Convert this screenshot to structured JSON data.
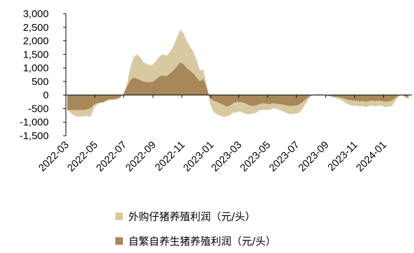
{
  "chart_data": {
    "type": "area",
    "title": "",
    "xlabel": "",
    "ylabel": "",
    "ylim": [
      -1500,
      3000
    ],
    "yticks": [
      3000,
      2500,
      2000,
      1500,
      1000,
      500,
      0,
      -500,
      -1000,
      -1500
    ],
    "ytick_labels": [
      "3,000",
      "2,500",
      "2,000",
      "1,500",
      "1,000",
      "500",
      "0",
      "-500",
      "-1,000",
      "-1,500"
    ],
    "xlim": [
      "2022-03",
      "2024-03"
    ],
    "xtick_labels": [
      "2022-03",
      "2022-05",
      "2022-07",
      "2022-09",
      "2022-11",
      "2023-01",
      "2023-03",
      "2023-05",
      "2023-07",
      "2023-09",
      "2023-11",
      "2024-01"
    ],
    "grid": false,
    "legend_position": "bottom",
    "series": [
      {
        "name": "外购仔猪养殖利润（元/头）",
        "color": "#d9c9a3",
        "points": [
          [
            "2022-03-04",
            -550
          ],
          [
            "2022-03-11",
            -650
          ],
          [
            "2022-03-18",
            -750
          ],
          [
            "2022-03-25",
            -800
          ],
          [
            "2022-04-01",
            -800
          ],
          [
            "2022-04-08",
            -780
          ],
          [
            "2022-04-15",
            -780
          ],
          [
            "2022-04-22",
            -800
          ],
          [
            "2022-04-29",
            -500
          ],
          [
            "2022-05-06",
            -350
          ],
          [
            "2022-05-13",
            -280
          ],
          [
            "2022-05-20",
            -280
          ],
          [
            "2022-05-27",
            -200
          ],
          [
            "2022-06-03",
            -180
          ],
          [
            "2022-06-10",
            -180
          ],
          [
            "2022-06-17",
            -150
          ],
          [
            "2022-06-24",
            -100
          ],
          [
            "2022-07-01",
            50
          ],
          [
            "2022-07-08",
            400
          ],
          [
            "2022-07-15",
            1000
          ],
          [
            "2022-07-22",
            1400
          ],
          [
            "2022-07-29",
            1500
          ],
          [
            "2022-08-05",
            1400
          ],
          [
            "2022-08-12",
            1200
          ],
          [
            "2022-08-19",
            1150
          ],
          [
            "2022-08-26",
            1100
          ],
          [
            "2022-09-02",
            1150
          ],
          [
            "2022-09-09",
            1300
          ],
          [
            "2022-09-16",
            1450
          ],
          [
            "2022-09-23",
            1500
          ],
          [
            "2022-09-30",
            1450
          ],
          [
            "2022-10-07",
            1600
          ],
          [
            "2022-10-14",
            1800
          ],
          [
            "2022-10-21",
            2100
          ],
          [
            "2022-10-28",
            2400
          ],
          [
            "2022-11-04",
            2300
          ],
          [
            "2022-11-11",
            2000
          ],
          [
            "2022-11-18",
            1800
          ],
          [
            "2022-11-25",
            1600
          ],
          [
            "2022-12-02",
            1300
          ],
          [
            "2022-12-09",
            900
          ],
          [
            "2022-12-16",
            950
          ],
          [
            "2022-12-23",
            400
          ],
          [
            "2022-12-30",
            -300
          ],
          [
            "2023-01-06",
            -600
          ],
          [
            "2023-01-13",
            -700
          ],
          [
            "2023-01-20",
            -750
          ],
          [
            "2023-01-27",
            -800
          ],
          [
            "2023-02-03",
            -800
          ],
          [
            "2023-02-10",
            -750
          ],
          [
            "2023-02-17",
            -650
          ],
          [
            "2023-02-24",
            -650
          ],
          [
            "2023-03-03",
            -600
          ],
          [
            "2023-03-10",
            -650
          ],
          [
            "2023-03-17",
            -700
          ],
          [
            "2023-03-24",
            -700
          ],
          [
            "2023-03-31",
            -680
          ],
          [
            "2023-04-07",
            -650
          ],
          [
            "2023-04-14",
            -550
          ],
          [
            "2023-04-21",
            -550
          ],
          [
            "2023-04-28",
            -550
          ],
          [
            "2023-05-05",
            -550
          ],
          [
            "2023-05-12",
            -500
          ],
          [
            "2023-05-19",
            -500
          ],
          [
            "2023-05-26",
            -550
          ],
          [
            "2023-06-02",
            -600
          ],
          [
            "2023-06-09",
            -650
          ],
          [
            "2023-06-16",
            -700
          ],
          [
            "2023-06-23",
            -700
          ],
          [
            "2023-06-30",
            -680
          ],
          [
            "2023-07-07",
            -650
          ],
          [
            "2023-07-14",
            -500
          ],
          [
            "2023-07-21",
            -300
          ],
          [
            "2023-07-28",
            -100
          ],
          [
            "2023-08-04",
            0
          ],
          [
            "2023-08-11",
            20
          ],
          [
            "2023-08-18",
            30
          ],
          [
            "2023-08-25",
            30
          ],
          [
            "2023-09-01",
            -10
          ],
          [
            "2023-09-08",
            -40
          ],
          [
            "2023-09-15",
            -80
          ],
          [
            "2023-09-22",
            -120
          ],
          [
            "2023-09-29",
            -150
          ],
          [
            "2023-10-06",
            -200
          ],
          [
            "2023-10-13",
            -300
          ],
          [
            "2023-10-20",
            -350
          ],
          [
            "2023-10-27",
            -400
          ],
          [
            "2023-11-03",
            -380
          ],
          [
            "2023-11-10",
            -420
          ],
          [
            "2023-11-17",
            -400
          ],
          [
            "2023-11-24",
            -440
          ],
          [
            "2023-12-01",
            -400
          ],
          [
            "2023-12-08",
            -380
          ],
          [
            "2023-12-15",
            -420
          ],
          [
            "2023-12-22",
            -380
          ],
          [
            "2023-12-29",
            -400
          ],
          [
            "2024-01-05",
            -450
          ],
          [
            "2024-01-12",
            -420
          ],
          [
            "2024-01-19",
            -400
          ],
          [
            "2024-01-26",
            -200
          ],
          [
            "2024-02-02",
            -50
          ],
          [
            "2024-02-09",
            20
          ],
          [
            "2024-02-16",
            -100
          ],
          [
            "2024-02-23",
            -150
          ]
        ]
      },
      {
        "name": "自繁自养生猪养殖利润（元/头）",
        "color": "#a8875b",
        "points": [
          [
            "2022-03-04",
            -550
          ],
          [
            "2022-03-11",
            -550
          ],
          [
            "2022-03-18",
            -550
          ],
          [
            "2022-03-25",
            -550
          ],
          [
            "2022-04-01",
            -550
          ],
          [
            "2022-04-08",
            -550
          ],
          [
            "2022-04-15",
            -520
          ],
          [
            "2022-04-22",
            -480
          ],
          [
            "2022-04-29",
            -350
          ],
          [
            "2022-05-06",
            -300
          ],
          [
            "2022-05-13",
            -280
          ],
          [
            "2022-05-20",
            -250
          ],
          [
            "2022-05-27",
            -180
          ],
          [
            "2022-06-03",
            -150
          ],
          [
            "2022-06-10",
            -150
          ],
          [
            "2022-06-17",
            -130
          ],
          [
            "2022-06-24",
            -80
          ],
          [
            "2022-07-01",
            50
          ],
          [
            "2022-07-08",
            300
          ],
          [
            "2022-07-15",
            550
          ],
          [
            "2022-07-22",
            650
          ],
          [
            "2022-07-29",
            600
          ],
          [
            "2022-08-05",
            550
          ],
          [
            "2022-08-12",
            500
          ],
          [
            "2022-08-19",
            480
          ],
          [
            "2022-08-26",
            480
          ],
          [
            "2022-09-02",
            500
          ],
          [
            "2022-09-09",
            600
          ],
          [
            "2022-09-16",
            700
          ],
          [
            "2022-09-23",
            720
          ],
          [
            "2022-09-30",
            700
          ],
          [
            "2022-10-07",
            800
          ],
          [
            "2022-10-14",
            900
          ],
          [
            "2022-10-21",
            1050
          ],
          [
            "2022-10-28",
            1200
          ],
          [
            "2022-11-04",
            1150
          ],
          [
            "2022-11-11",
            1000
          ],
          [
            "2022-11-18",
            900
          ],
          [
            "2022-11-25",
            800
          ],
          [
            "2022-12-02",
            650
          ],
          [
            "2022-12-09",
            500
          ],
          [
            "2022-12-16",
            600
          ],
          [
            "2022-12-23",
            300
          ],
          [
            "2022-12-30",
            -100
          ],
          [
            "2023-01-06",
            -200
          ],
          [
            "2023-01-13",
            -250
          ],
          [
            "2023-01-20",
            -300
          ],
          [
            "2023-01-27",
            -350
          ],
          [
            "2023-02-03",
            -420
          ],
          [
            "2023-02-10",
            -400
          ],
          [
            "2023-02-17",
            -300
          ],
          [
            "2023-02-24",
            -250
          ],
          [
            "2023-03-03",
            -250
          ],
          [
            "2023-03-10",
            -280
          ],
          [
            "2023-03-17",
            -320
          ],
          [
            "2023-03-24",
            -380
          ],
          [
            "2023-03-31",
            -400
          ],
          [
            "2023-04-07",
            -380
          ],
          [
            "2023-04-14",
            -330
          ],
          [
            "2023-04-21",
            -300
          ],
          [
            "2023-04-28",
            -320
          ],
          [
            "2023-05-05",
            -330
          ],
          [
            "2023-05-12",
            -300
          ],
          [
            "2023-05-19",
            -320
          ],
          [
            "2023-05-26",
            -330
          ],
          [
            "2023-06-02",
            -350
          ],
          [
            "2023-06-09",
            -380
          ],
          [
            "2023-06-16",
            -400
          ],
          [
            "2023-06-23",
            -400
          ],
          [
            "2023-06-30",
            -380
          ],
          [
            "2023-07-07",
            -350
          ],
          [
            "2023-07-14",
            -250
          ],
          [
            "2023-07-21",
            -150
          ],
          [
            "2023-07-28",
            -50
          ],
          [
            "2023-08-04",
            10
          ],
          [
            "2023-08-11",
            20
          ],
          [
            "2023-08-18",
            20
          ],
          [
            "2023-08-25",
            10
          ],
          [
            "2023-09-01",
            -10
          ],
          [
            "2023-09-08",
            -30
          ],
          [
            "2023-09-15",
            -50
          ],
          [
            "2023-09-22",
            -60
          ],
          [
            "2023-09-29",
            -80
          ],
          [
            "2023-10-06",
            -100
          ],
          [
            "2023-10-13",
            -150
          ],
          [
            "2023-10-20",
            -180
          ],
          [
            "2023-10-27",
            -200
          ],
          [
            "2023-11-03",
            -200
          ],
          [
            "2023-11-10",
            -230
          ],
          [
            "2023-11-17",
            -220
          ],
          [
            "2023-11-24",
            -240
          ],
          [
            "2023-12-01",
            -220
          ],
          [
            "2023-12-08",
            -200
          ],
          [
            "2023-12-15",
            -220
          ],
          [
            "2023-12-22",
            -200
          ],
          [
            "2023-12-29",
            -220
          ],
          [
            "2024-01-05",
            -250
          ],
          [
            "2024-01-12",
            -230
          ],
          [
            "2024-01-19",
            -200
          ],
          [
            "2024-01-26",
            -100
          ],
          [
            "2024-02-02",
            -20
          ],
          [
            "2024-02-09",
            10
          ],
          [
            "2024-02-16",
            -60
          ],
          [
            "2024-02-23",
            -80
          ]
        ]
      }
    ]
  }
}
